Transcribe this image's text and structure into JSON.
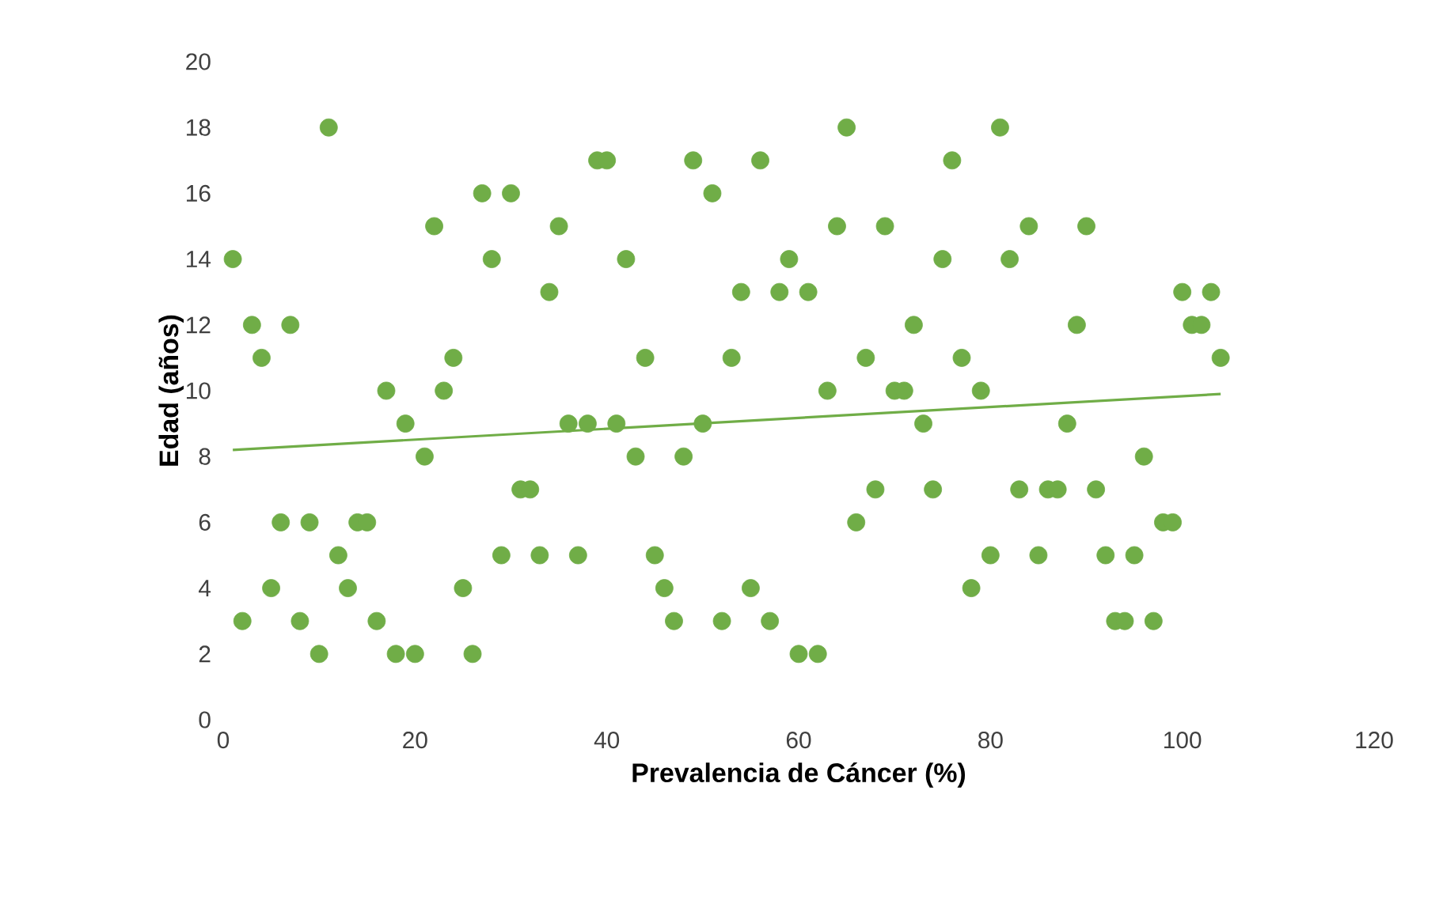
{
  "chart_data": {
    "type": "scatter",
    "xlabel": "Prevalencia de Cáncer (%)",
    "ylabel": "Edad (años)",
    "xlim": [
      0,
      120
    ],
    "xticks": [
      0,
      20,
      40,
      60,
      80,
      100,
      120
    ],
    "ylim": [
      0,
      20
    ],
    "yticks": [
      0,
      2,
      4,
      6,
      8,
      10,
      12,
      14,
      16,
      18,
      20
    ],
    "grid": false,
    "series": [
      {
        "marker": "circle",
        "color": "#70ad47",
        "x": [
          1,
          2,
          3,
          4,
          5,
          6,
          7,
          8,
          9,
          10,
          11,
          12,
          13,
          14,
          15,
          16,
          17,
          18,
          19,
          20,
          21,
          22,
          23,
          24,
          25,
          26,
          27,
          28,
          29,
          30,
          31,
          32,
          33,
          34,
          35,
          36,
          37,
          38,
          39,
          40,
          41,
          42,
          43,
          44,
          45,
          46,
          47,
          48,
          49,
          50,
          51,
          52,
          53,
          54,
          55,
          56,
          57,
          58,
          59,
          60,
          61,
          62,
          63,
          64,
          65,
          66,
          67,
          68,
          69,
          70,
          71,
          72,
          73,
          74,
          75,
          76,
          77,
          78,
          79,
          80,
          81,
          82,
          83,
          84,
          85,
          86,
          87,
          88,
          89,
          90,
          91,
          92,
          93,
          94,
          95,
          96,
          97,
          98,
          99,
          100,
          101,
          102,
          103,
          104
        ],
        "values": [
          14,
          3,
          12,
          11,
          4,
          6,
          12,
          3,
          6,
          2,
          18,
          5,
          4,
          6,
          6,
          3,
          10,
          2,
          9,
          2,
          8,
          15,
          10,
          11,
          4,
          2,
          16,
          14,
          5,
          16,
          7,
          7,
          5,
          13,
          15,
          9,
          5,
          9,
          17,
          17,
          9,
          14,
          8,
          11,
          5,
          4,
          3,
          8,
          17,
          9,
          16,
          3,
          11,
          13,
          4,
          17,
          3,
          13,
          14,
          2,
          13,
          2,
          10,
          15,
          18,
          6,
          11,
          7,
          15,
          10,
          10,
          12,
          9,
          7,
          14,
          17,
          11,
          4,
          10,
          5,
          18,
          14,
          7,
          15,
          5,
          7,
          7,
          9,
          12,
          15,
          7,
          5,
          3,
          3,
          5,
          8,
          3,
          6,
          6,
          13,
          12,
          12,
          13,
          11
        ]
      },
      {
        "type": "line",
        "marker": "none",
        "color": "#70ad47",
        "x": [
          1,
          104
        ],
        "values": [
          8.2,
          9.9
        ]
      }
    ]
  }
}
